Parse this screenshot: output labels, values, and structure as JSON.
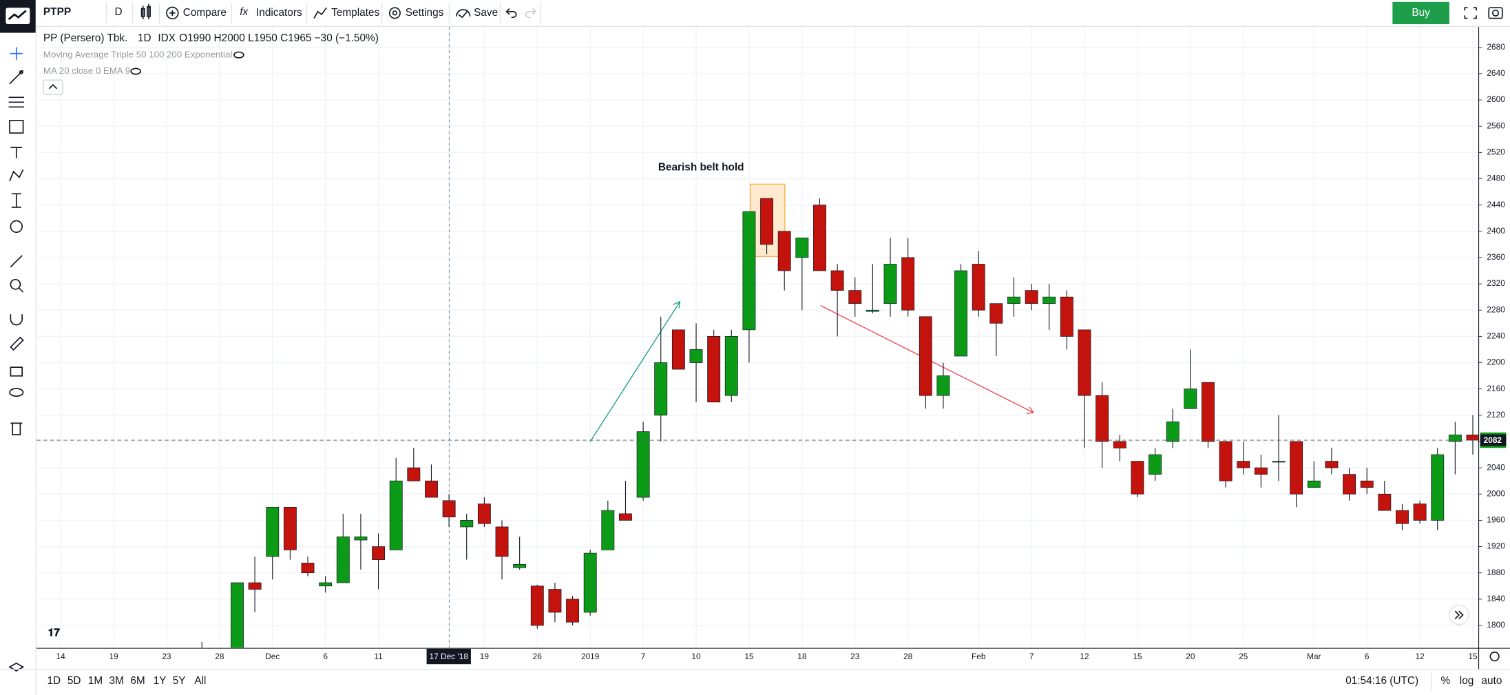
{
  "toolbar": {
    "symbol": "PTPP",
    "interval": "D",
    "buttons": [
      "Compare",
      "Indicators",
      "Templates",
      "Settings",
      "Save"
    ],
    "buy": "Buy"
  },
  "legend": {
    "name": "PP (Persero) Tbk.",
    "interval": "1D",
    "exchange": "IDX",
    "ohlc": "O1990 H2000 L1950 C1965 −30 (−1.50%)"
  },
  "indicators": [
    "Moving Average Triple 50 100 200 Exponential",
    "MA 20 close 0 EMA 9"
  ],
  "range_buttons": [
    "1D",
    "5D",
    "1M",
    "3M",
    "6M",
    "1Y",
    "5Y",
    "All"
  ],
  "clock": "01:54:16 (UTC)",
  "scale_buttons": [
    "%",
    "log",
    "auto"
  ],
  "chart_data": {
    "type": "candlestick",
    "annotation": "Bearish belt hold",
    "categories": [
      "14",
      null,
      null,
      "19",
      null,
      null,
      "23",
      null,
      null,
      "28",
      null,
      null,
      "Dec",
      null,
      null,
      "6",
      null,
      null,
      "11",
      null,
      null,
      null,
      "17 Dec '18",
      null,
      "19",
      null,
      null,
      "26",
      null,
      null,
      "2019",
      null,
      null,
      "7",
      null,
      null,
      "10",
      null,
      null,
      "15",
      null,
      null,
      "18",
      null,
      null,
      "23",
      null,
      null,
      "28",
      null,
      null,
      null,
      "Feb",
      null,
      null,
      "7",
      null,
      null,
      "12",
      null,
      null,
      "15",
      null,
      null,
      "20",
      null,
      null,
      "25",
      null,
      null,
      null,
      "Mar",
      null,
      null,
      "6",
      null,
      null,
      "12",
      null,
      null,
      "15"
    ],
    "open": [
      null,
      null,
      null,
      null,
      null,
      null,
      null,
      null,
      1750,
      null,
      1750,
      1865,
      1905,
      1980,
      1895,
      1860,
      1865,
      1930,
      1920,
      1915,
      2040,
      2020,
      1990,
      1950,
      1985,
      1950,
      1888,
      1860,
      1855,
      1840,
      1820,
      1915,
      1970,
      1995,
      2120,
      2250,
      2200,
      2240,
      2150,
      2250,
      2450,
      2400,
      2360,
      2440,
      2340,
      2310,
      2278,
      2290,
      2360,
      2270,
      2150,
      2210,
      2350,
      2290,
      2290,
      2310,
      2290,
      2300,
      2250,
      2150,
      2080,
      2050,
      2030,
      2080,
      2130,
      2170,
      2080,
      2050,
      2040,
      2050,
      2080,
      2010,
      2050,
      2030,
      2020,
      2000,
      1975,
      1985,
      1960,
      2080,
      2090
    ],
    "high": [
      null,
      null,
      null,
      null,
      null,
      null,
      null,
      null,
      1775,
      null,
      1865,
      1905,
      1980,
      1980,
      1905,
      1875,
      1970,
      1970,
      1940,
      2055,
      2070,
      2045,
      2000,
      1970,
      1995,
      1960,
      1935,
      1862,
      1865,
      1845,
      1915,
      1990,
      2020,
      2110,
      2270,
      2250,
      2260,
      2250,
      2250,
      2430,
      2450,
      2400,
      2390,
      2450,
      2350,
      2330,
      2350,
      2390,
      2390,
      2270,
      2200,
      2350,
      2370,
      2290,
      2330,
      2320,
      2320,
      2310,
      2250,
      2170,
      2090,
      2050,
      2070,
      2130,
      2220,
      2170,
      2080,
      2080,
      2060,
      2120,
      2080,
      2050,
      2070,
      2040,
      2040,
      2020,
      1985,
      1990,
      2070,
      2110,
      2120
    ],
    "low": [
      null,
      null,
      null,
      null,
      null,
      null,
      null,
      null,
      1730,
      null,
      1740,
      1820,
      1870,
      1900,
      1875,
      1850,
      1865,
      1885,
      1855,
      1915,
      2020,
      1995,
      1950,
      1900,
      1950,
      1870,
      1885,
      1795,
      1805,
      1800,
      1815,
      1915,
      1960,
      1990,
      2080,
      2190,
      2140,
      2140,
      2140,
      2200,
      2365,
      2310,
      2280,
      2340,
      2240,
      2270,
      2275,
      2270,
      2270,
      2130,
      2130,
      2210,
      2270,
      2210,
      2270,
      2280,
      2250,
      2220,
      2070,
      2040,
      2050,
      1995,
      2020,
      2070,
      2130,
      2070,
      2010,
      2030,
      2010,
      2020,
      1980,
      2010,
      2030,
      1990,
      2000,
      1975,
      1945,
      1955,
      1945,
      2030,
      2060
    ],
    "close": [
      null,
      null,
      null,
      null,
      null,
      null,
      null,
      null,
      1740,
      null,
      1865,
      1855,
      1980,
      1915,
      1880,
      1865,
      1935,
      1935,
      1900,
      2020,
      2020,
      1995,
      1965,
      1960,
      1955,
      1905,
      1893,
      1800,
      1820,
      1805,
      1910,
      1975,
      1960,
      2095,
      2200,
      2190,
      2220,
      2140,
      2240,
      2430,
      2380,
      2340,
      2390,
      2340,
      2310,
      2290,
      2280,
      2350,
      2280,
      2150,
      2180,
      2340,
      2280,
      2260,
      2300,
      2290,
      2300,
      2240,
      2150,
      2080,
      2070,
      2000,
      2060,
      2110,
      2160,
      2080,
      2020,
      2040,
      2030,
      2050,
      2000,
      2020,
      2040,
      2000,
      2010,
      1975,
      1955,
      1960,
      2060,
      2090,
      2082
    ],
    "up_color": "#0c9b17",
    "down_color": "#c4120c",
    "last_price": 2082,
    "ylim": [
      1766,
      2711
    ],
    "yticks": [
      1800,
      1840,
      1880,
      1920,
      1960,
      2000,
      2040,
      2080,
      2120,
      2160,
      2200,
      2240,
      2280,
      2320,
      2360,
      2400,
      2440,
      2480,
      2520,
      2560,
      2600,
      2640,
      2680
    ],
    "grid": true
  }
}
